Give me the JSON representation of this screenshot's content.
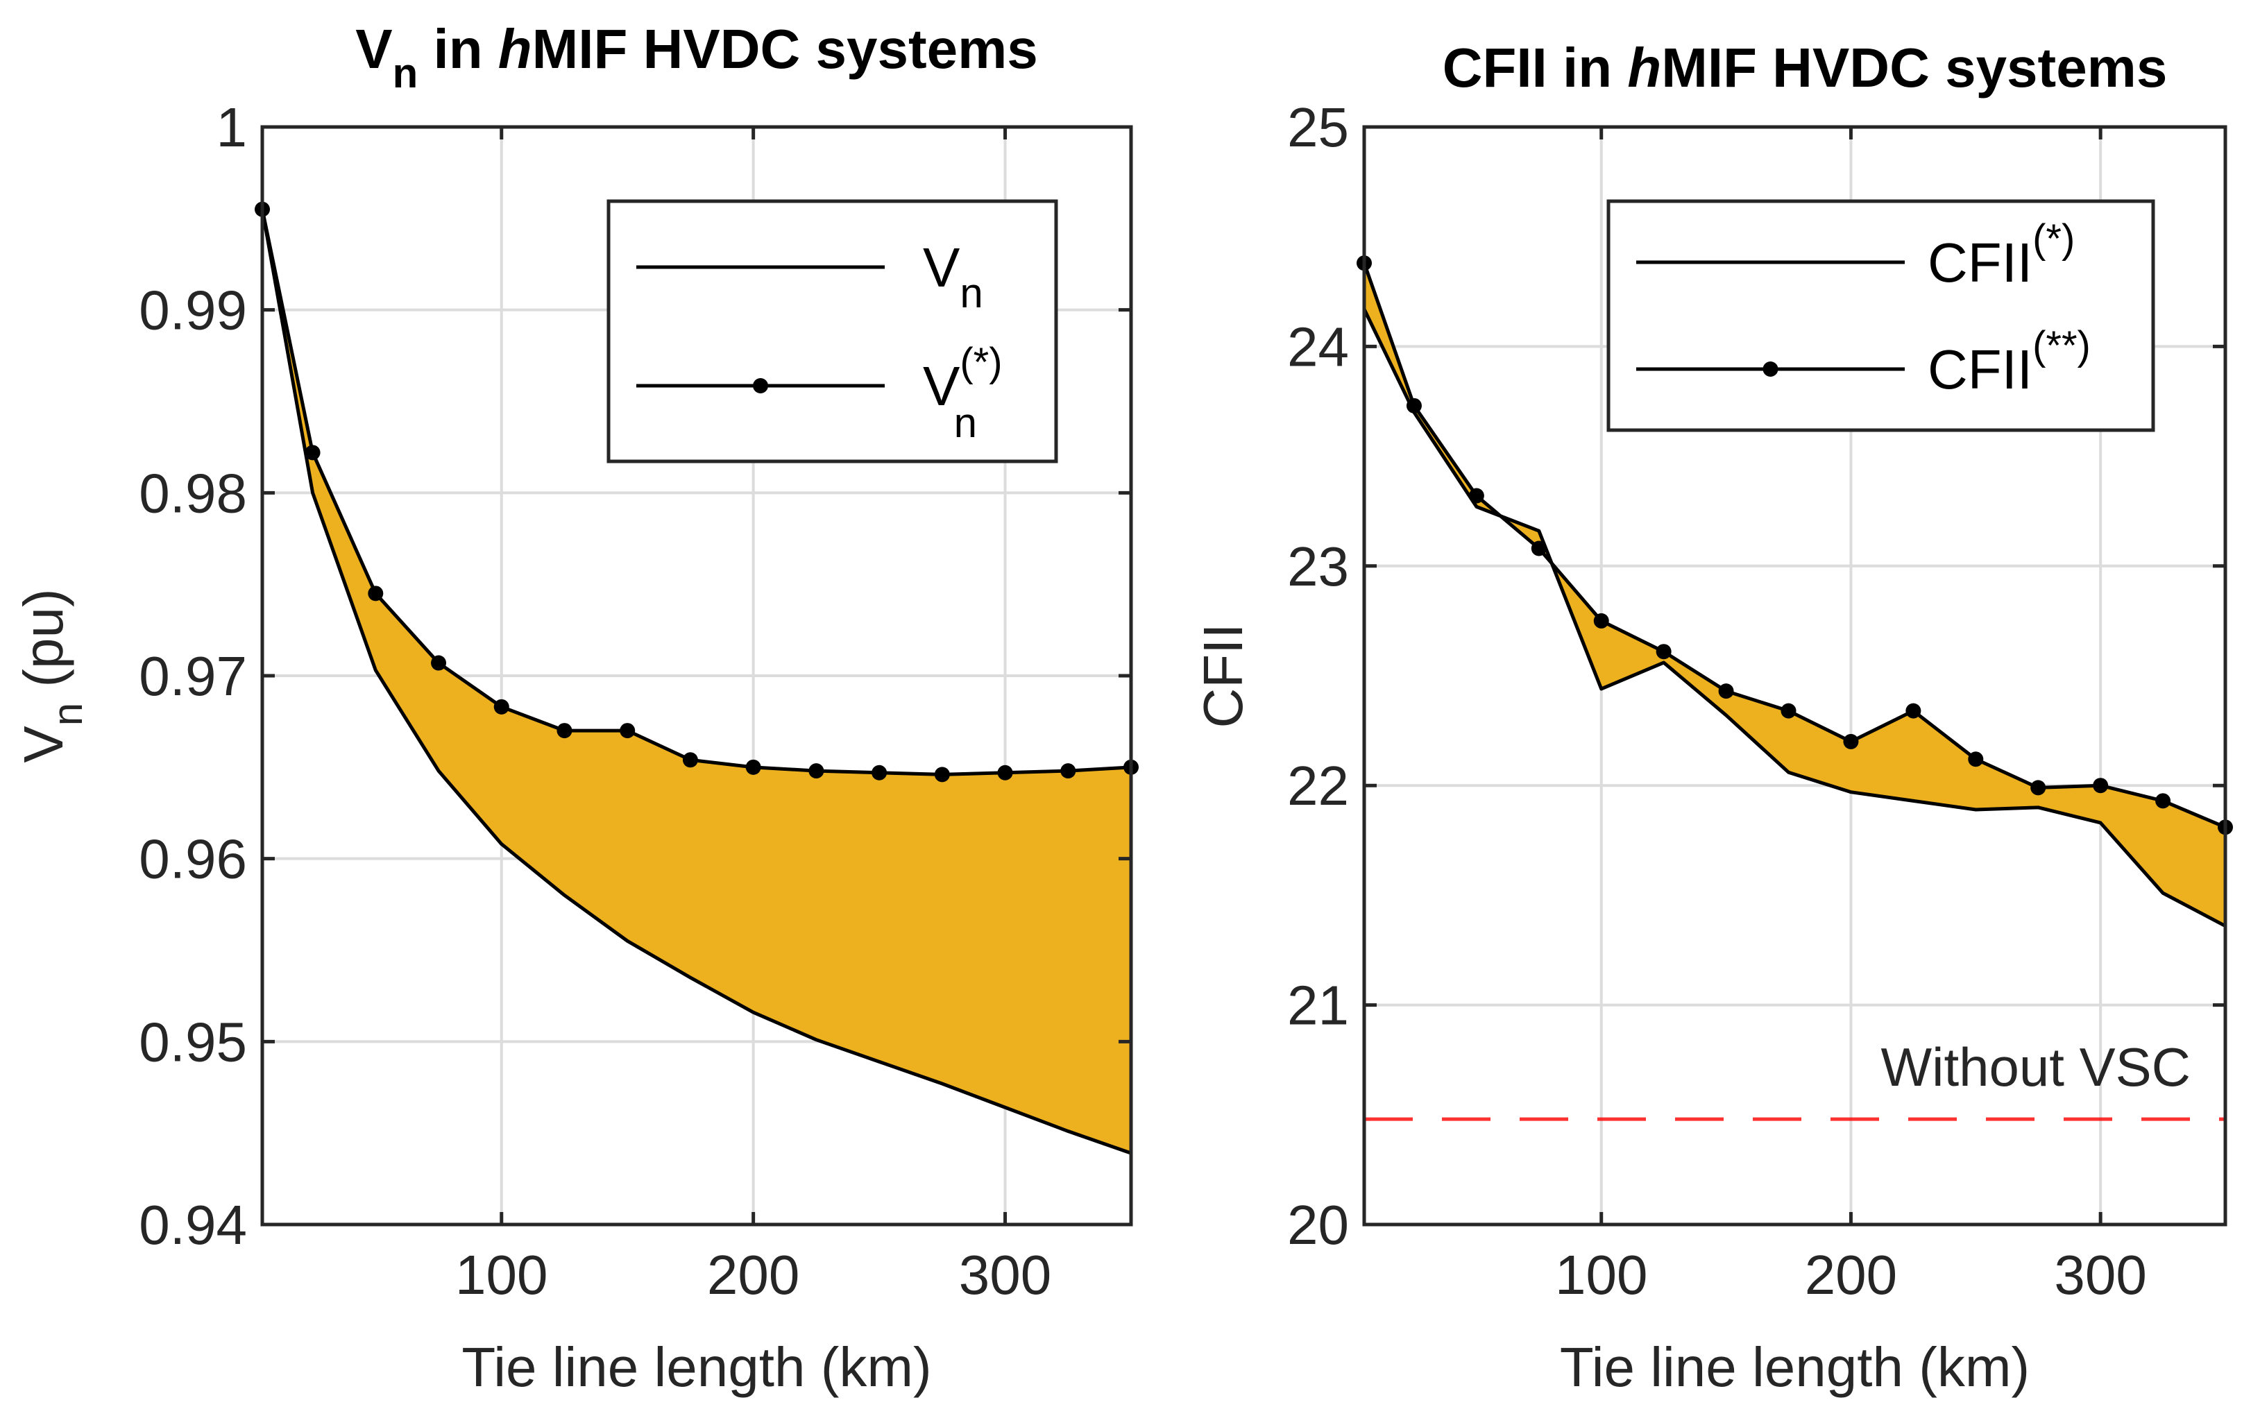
{
  "chart_data": [
    {
      "type": "line",
      "title_main": "V",
      "title_sub": "n",
      "title_mid": " in  ",
      "title_italic": "h",
      "title_rest": "MIF HVDC systems",
      "xlabel": "Tie line length (km)",
      "ylabel_main": "V",
      "ylabel_sub": "n",
      "ylabel_rest": " (pu)",
      "xlim": [
        5,
        350
      ],
      "ylim": [
        0.94,
        1.0
      ],
      "xticks": [
        100,
        200,
        300
      ],
      "yticks": [
        0.94,
        0.95,
        0.96,
        0.97,
        0.98,
        0.99,
        1.0
      ],
      "ytick_labels": [
        "0.94",
        "0.95",
        "0.96",
        "0.97",
        "0.98",
        "0.99",
        "1"
      ],
      "grid": true,
      "legend_position": "top-right",
      "fill_color": "#EDB120",
      "series": [
        {
          "name_main": "V",
          "name_sub": "n",
          "name_sup": "",
          "marker": false,
          "x": [
            5,
            25,
            50,
            75,
            100,
            125,
            150,
            175,
            200,
            225,
            250,
            275,
            300,
            325,
            350
          ],
          "values": [
            0.9955,
            0.98,
            0.9703,
            0.9648,
            0.9608,
            0.958,
            0.9555,
            0.9535,
            0.9516,
            0.9501,
            0.9489,
            0.9477,
            0.9464,
            0.9451,
            0.9439
          ]
        },
        {
          "name_main": "V",
          "name_sub": "n",
          "name_sup": "(*)",
          "marker": true,
          "x": [
            5,
            25,
            50,
            75,
            100,
            125,
            150,
            175,
            200,
            225,
            250,
            275,
            300,
            325,
            350
          ],
          "values": [
            0.9955,
            0.9822,
            0.9745,
            0.9707,
            0.9683,
            0.967,
            0.967,
            0.9654,
            0.965,
            0.9648,
            0.9647,
            0.9646,
            0.9647,
            0.9648,
            0.965
          ]
        }
      ]
    },
    {
      "type": "line",
      "title_main": "CFII",
      "title_sub": "",
      "title_mid": " in  ",
      "title_italic": "h",
      "title_rest": "MIF HVDC systems",
      "xlabel": "Tie line length (km)",
      "ylabel_main": "CFII",
      "ylabel_sub": "",
      "ylabel_rest": "",
      "xlim": [
        5,
        350
      ],
      "ylim": [
        20,
        25
      ],
      "xticks": [
        100,
        200,
        300
      ],
      "yticks": [
        20,
        21,
        22,
        23,
        24,
        25
      ],
      "ytick_labels": [
        "20",
        "21",
        "22",
        "23",
        "24",
        "25"
      ],
      "grid": true,
      "legend_position": "top-right",
      "fill_color": "#EDB120",
      "series": [
        {
          "name_main": "CFII",
          "name_sub": "",
          "name_sup": "(*)",
          "marker": false,
          "x": [
            5,
            25,
            50,
            75,
            100,
            125,
            150,
            175,
            200,
            225,
            250,
            275,
            300,
            325,
            350
          ],
          "values": [
            24.17,
            23.7,
            23.27,
            23.16,
            22.44,
            22.56,
            22.32,
            22.06,
            21.97,
            21.93,
            21.89,
            21.9,
            21.83,
            21.51,
            21.36
          ]
        },
        {
          "name_main": "CFII",
          "name_sub": "",
          "name_sup": "(**)",
          "marker": true,
          "x": [
            5,
            25,
            50,
            75,
            100,
            125,
            150,
            175,
            200,
            225,
            250,
            275,
            300,
            325,
            350
          ],
          "values": [
            24.38,
            23.73,
            23.32,
            23.08,
            22.75,
            22.61,
            22.43,
            22.34,
            22.2,
            22.34,
            22.12,
            21.99,
            22.0,
            21.93,
            21.81
          ]
        }
      ],
      "reference_line": {
        "label": "Without VSC",
        "value": 20.48,
        "color": "#FF0000"
      }
    }
  ]
}
